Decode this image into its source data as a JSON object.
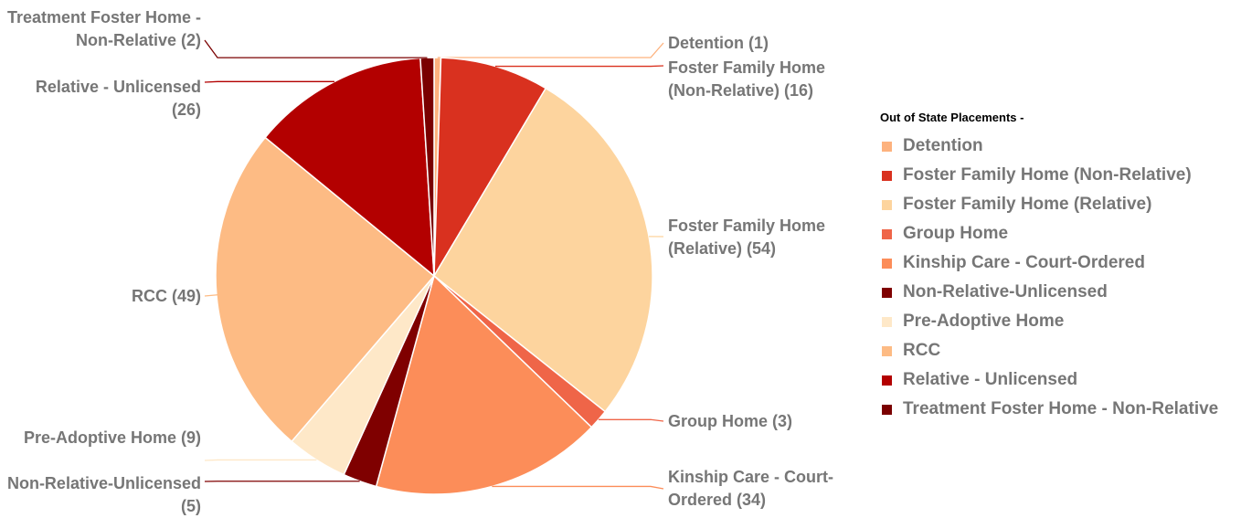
{
  "chart_data": {
    "type": "pie",
    "legend_title": "Out of State Placements -",
    "legend": "right",
    "categories": [
      "Detention",
      "Foster Family Home (Non-Relative)",
      "Foster Family Home (Relative)",
      "Group Home",
      "Kinship Care - Court-Ordered",
      "Non-Relative-Unlicensed",
      "Pre-Adoptive Home",
      "RCC",
      "Relative - Unlicensed",
      "Treatment Foster Home - Non-Relative"
    ],
    "values": [
      1,
      16,
      54,
      3,
      34,
      5,
      9,
      49,
      26,
      2
    ],
    "value_labels": [
      "Detention (1)",
      "Foster Family Home (Non-Relative) (16)",
      "Foster Family Home (Relative) (54)",
      "Group Home (3)",
      "Kinship Care - Court-Ordered (34)",
      "Non-Relative-Unlicensed (5)",
      "Pre-Adoptive Home (9)",
      "RCC (49)",
      "Relative - Unlicensed (26)",
      "Treatment Foster Home - Non-Relative (2)"
    ],
    "colors": [
      "#fdb27e",
      "#d9311f",
      "#fdd49e",
      "#ef6548",
      "#fc8d59",
      "#7f0000",
      "#fee8c8",
      "#fdbb84",
      "#b30000",
      "#7a0000"
    ]
  }
}
